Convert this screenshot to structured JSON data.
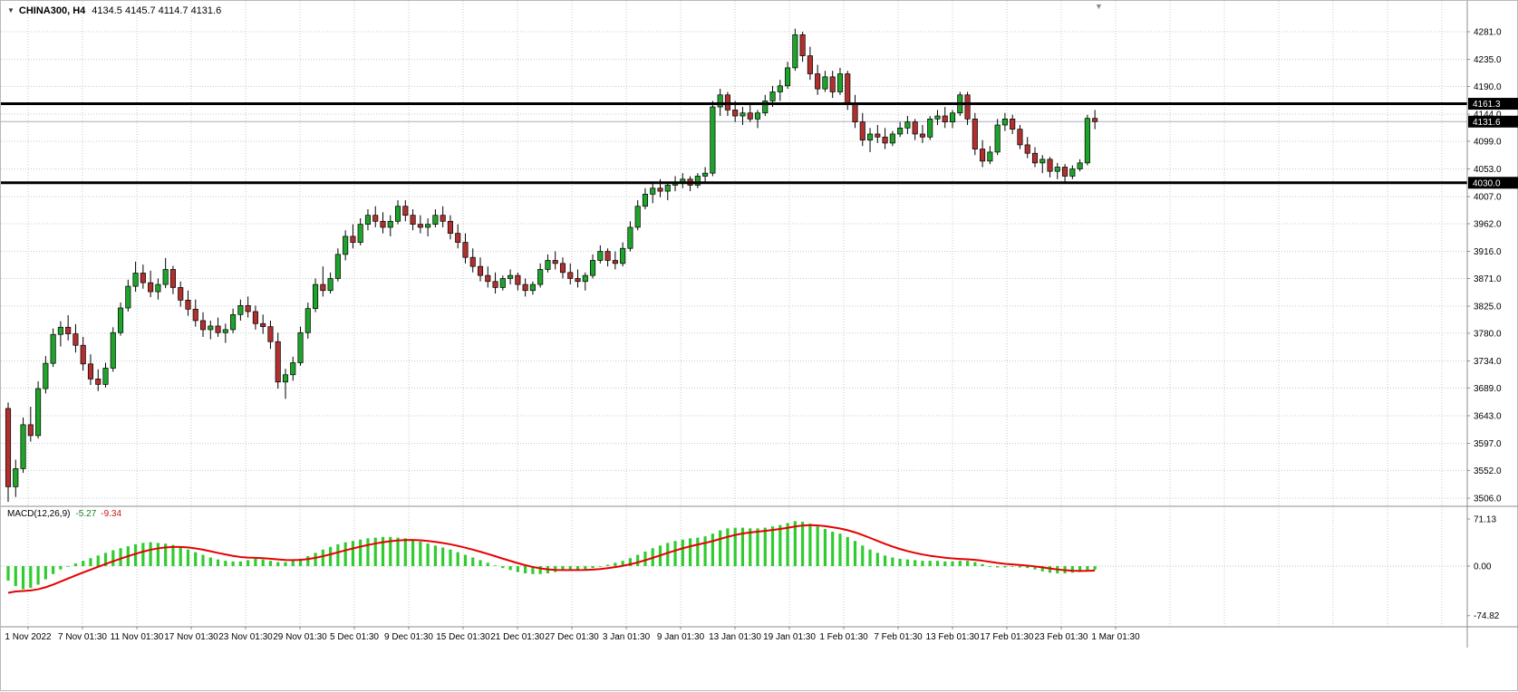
{
  "window": {
    "symbol": "CHINA300, H4",
    "ohlc": "4134.5 4145.7 4114.7 4131.6"
  },
  "macd": {
    "label": "MACD(12,26,9)",
    "main_value": "-5.27",
    "signal_value": "-9.34",
    "ticks": [
      "71.13",
      "0.00",
      "-74.82"
    ],
    "tick_values": [
      71.13,
      0,
      -74.82
    ]
  },
  "price_axis": {
    "ticks": [
      "4281.0",
      "4235.0",
      "4190.0",
      "4144.0",
      "4099.0",
      "4053.0",
      "4007.0",
      "3962.0",
      "3916.0",
      "3871.0",
      "3825.0",
      "3780.0",
      "3734.0",
      "3689.0",
      "3643.0",
      "3597.0",
      "3552.0",
      "3506.0"
    ],
    "values": [
      4281,
      4235,
      4190,
      4144,
      4099,
      4053,
      4007,
      3962,
      3916,
      3871,
      3825,
      3780,
      3734,
      3689,
      3643,
      3597,
      3552,
      3506
    ]
  },
  "time_axis": {
    "labels": [
      "1 Nov 2022",
      "7 Nov 01:30",
      "11 Nov 01:30",
      "17 Nov 01:30",
      "23 Nov 01:30",
      "29 Nov 01:30",
      "5 Dec 01:30",
      "9 Dec 01:30",
      "15 Dec 01:30",
      "21 Dec 01:30",
      "27 Dec 01:30",
      "3 Jan 01:30",
      "9 Jan 01:30",
      "13 Jan 01:30",
      "19 Jan 01:30",
      "1 Feb 01:30",
      "7 Feb 01:30",
      "13 Feb 01:30",
      "17 Feb 01:30",
      "23 Feb 01:30",
      "1 Mar 01:30"
    ]
  },
  "lines": {
    "levels": [
      {
        "price": 4161.3,
        "tag": "4161.3"
      },
      {
        "price": 4030.0,
        "tag": "4030.0"
      }
    ],
    "current": {
      "price": 4131.6,
      "tag": "4131.6"
    }
  },
  "colors": {
    "bull": "#1ea32b",
    "bear": "#b03030",
    "outline": "#000000",
    "wick": "#000000",
    "grid": "#c9c9c9",
    "hline": "#000000",
    "hist": "#2fcc2f",
    "signal": "#e60000",
    "tag_bg": "#000000",
    "tag_text": "#ffffff",
    "divider": "#8c8c8c",
    "current_line": "#aab0bc"
  },
  "chart_data": [
    {
      "type": "candlestick",
      "title": "CHINA300, H4",
      "timeframe": "H4",
      "ylim": [
        3506,
        4281
      ],
      "y_tick_labels": [
        "4281.0",
        "4235.0",
        "4190.0",
        "4144.0",
        "4099.0",
        "4053.0",
        "4007.0",
        "3962.0",
        "3916.0",
        "3871.0",
        "3825.0",
        "3780.0",
        "3734.0",
        "3689.0",
        "3643.0",
        "3597.0",
        "3552.0",
        "3506.0"
      ],
      "x_tick_labels": [
        "1 Nov 2022",
        "7 Nov 01:30",
        "11 Nov 01:30",
        "17 Nov 01:30",
        "23 Nov 01:30",
        "29 Nov 01:30",
        "5 Dec 01:30",
        "9 Dec 01:30",
        "15 Dec 01:30",
        "21 Dec 01:30",
        "27 Dec 01:30",
        "3 Jan 01:30",
        "9 Jan 01:30",
        "13 Jan 01:30",
        "19 Jan 01:30",
        "1 Feb 01:30",
        "7 Feb 01:30",
        "13 Feb 01:30",
        "17 Feb 01:30",
        "23 Feb 01:30",
        "1 Mar 01:30"
      ],
      "horizontal_levels": [
        4161.3,
        4030.0
      ],
      "current_price": 4131.6,
      "ohlc": [
        [
          3655,
          3665,
          3500,
          3525
        ],
        [
          3525,
          3570,
          3508,
          3555
        ],
        [
          3555,
          3640,
          3548,
          3628
        ],
        [
          3628,
          3658,
          3600,
          3610
        ],
        [
          3610,
          3700,
          3605,
          3688
        ],
        [
          3688,
          3742,
          3680,
          3730
        ],
        [
          3730,
          3788,
          3724,
          3778
        ],
        [
          3778,
          3800,
          3758,
          3790
        ],
        [
          3790,
          3810,
          3768,
          3779
        ],
        [
          3779,
          3795,
          3748,
          3760
        ],
        [
          3760,
          3774,
          3718,
          3729
        ],
        [
          3729,
          3745,
          3694,
          3704
        ],
        [
          3704,
          3720,
          3684,
          3695
        ],
        [
          3695,
          3731,
          3690,
          3722
        ],
        [
          3722,
          3790,
          3716,
          3781
        ],
        [
          3781,
          3831,
          3776,
          3822
        ],
        [
          3822,
          3869,
          3816,
          3858
        ],
        [
          3858,
          3899,
          3849,
          3880
        ],
        [
          3880,
          3894,
          3854,
          3864
        ],
        [
          3864,
          3884,
          3840,
          3849
        ],
        [
          3849,
          3871,
          3836,
          3861
        ],
        [
          3861,
          3905,
          3855,
          3886
        ],
        [
          3886,
          3892,
          3845,
          3856
        ],
        [
          3856,
          3866,
          3824,
          3835
        ],
        [
          3835,
          3851,
          3809,
          3820
        ],
        [
          3820,
          3836,
          3791,
          3801
        ],
        [
          3801,
          3815,
          3774,
          3786
        ],
        [
          3786,
          3801,
          3770,
          3792
        ],
        [
          3792,
          3806,
          3774,
          3781
        ],
        [
          3781,
          3796,
          3764,
          3786
        ],
        [
          3786,
          3821,
          3780,
          3811
        ],
        [
          3811,
          3836,
          3801,
          3826
        ],
        [
          3826,
          3841,
          3806,
          3816
        ],
        [
          3816,
          3826,
          3786,
          3796
        ],
        [
          3796,
          3811,
          3779,
          3791
        ],
        [
          3791,
          3801,
          3754,
          3766
        ],
        [
          3766,
          3781,
          3688,
          3699
        ],
        [
          3699,
          3721,
          3671,
          3711
        ],
        [
          3711,
          3741,
          3701,
          3731
        ],
        [
          3731,
          3791,
          3726,
          3781
        ],
        [
          3781,
          3831,
          3771,
          3821
        ],
        [
          3821,
          3871,
          3815,
          3861
        ],
        [
          3861,
          3891,
          3841,
          3851
        ],
        [
          3851,
          3881,
          3846,
          3871
        ],
        [
          3871,
          3921,
          3866,
          3911
        ],
        [
          3911,
          3951,
          3901,
          3941
        ],
        [
          3941,
          3961,
          3921,
          3931
        ],
        [
          3931,
          3971,
          3926,
          3961
        ],
        [
          3961,
          3986,
          3951,
          3976
        ],
        [
          3976,
          3991,
          3956,
          3966
        ],
        [
          3966,
          3981,
          3946,
          3956
        ],
        [
          3956,
          3976,
          3941,
          3966
        ],
        [
          3966,
          4001,
          3961,
          3991
        ],
        [
          3991,
          4001,
          3966,
          3976
        ],
        [
          3976,
          3986,
          3951,
          3961
        ],
        [
          3961,
          3976,
          3946,
          3956
        ],
        [
          3956,
          3971,
          3941,
          3961
        ],
        [
          3961,
          3986,
          3956,
          3976
        ],
        [
          3976,
          3991,
          3956,
          3966
        ],
        [
          3966,
          3976,
          3936,
          3946
        ],
        [
          3946,
          3961,
          3921,
          3931
        ],
        [
          3931,
          3946,
          3896,
          3906
        ],
        [
          3906,
          3921,
          3881,
          3891
        ],
        [
          3891,
          3906,
          3866,
          3876
        ],
        [
          3876,
          3891,
          3856,
          3866
        ],
        [
          3866,
          3881,
          3846,
          3856
        ],
        [
          3856,
          3876,
          3851,
          3871
        ],
        [
          3871,
          3886,
          3861,
          3876
        ],
        [
          3876,
          3881,
          3851,
          3861
        ],
        [
          3861,
          3871,
          3841,
          3851
        ],
        [
          3851,
          3866,
          3844,
          3861
        ],
        [
          3861,
          3896,
          3856,
          3886
        ],
        [
          3886,
          3911,
          3881,
          3901
        ],
        [
          3901,
          3916,
          3886,
          3896
        ],
        [
          3896,
          3906,
          3871,
          3881
        ],
        [
          3881,
          3896,
          3861,
          3871
        ],
        [
          3871,
          3886,
          3856,
          3866
        ],
        [
          3866,
          3881,
          3851,
          3876
        ],
        [
          3876,
          3911,
          3871,
          3901
        ],
        [
          3901,
          3926,
          3896,
          3916
        ],
        [
          3916,
          3921,
          3891,
          3901
        ],
        [
          3901,
          3916,
          3886,
          3896
        ],
        [
          3896,
          3931,
          3891,
          3921
        ],
        [
          3921,
          3966,
          3916,
          3956
        ],
        [
          3956,
          4001,
          3951,
          3991
        ],
        [
          3991,
          4021,
          3986,
          4011
        ],
        [
          4011,
          4031,
          3996,
          4021
        ],
        [
          4021,
          4036,
          4006,
          4016
        ],
        [
          4016,
          4031,
          4001,
          4026
        ],
        [
          4026,
          4041,
          4016,
          4031
        ],
        [
          4031,
          4046,
          4021,
          4036
        ],
        [
          4036,
          4041,
          4016,
          4026
        ],
        [
          4026,
          4046,
          4021,
          4041
        ],
        [
          4041,
          4056,
          4031,
          4046
        ],
        [
          4046,
          4166,
          4041,
          4156
        ],
        [
          4156,
          4186,
          4141,
          4176
        ],
        [
          4176,
          4181,
          4141,
          4151
        ],
        [
          4151,
          4166,
          4131,
          4141
        ],
        [
          4141,
          4156,
          4126,
          4146
        ],
        [
          4146,
          4161,
          4131,
          4136
        ],
        [
          4136,
          4151,
          4121,
          4146
        ],
        [
          4146,
          4176,
          4141,
          4166
        ],
        [
          4166,
          4191,
          4156,
          4181
        ],
        [
          4181,
          4201,
          4166,
          4191
        ],
        [
          4191,
          4231,
          4186,
          4221
        ],
        [
          4221,
          4286,
          4216,
          4276
        ],
        [
          4276,
          4281,
          4231,
          4241
        ],
        [
          4241,
          4256,
          4201,
          4211
        ],
        [
          4211,
          4226,
          4176,
          4186
        ],
        [
          4186,
          4216,
          4181,
          4206
        ],
        [
          4206,
          4216,
          4171,
          4181
        ],
        [
          4181,
          4221,
          4176,
          4211
        ],
        [
          4211,
          4216,
          4151,
          4161
        ],
        [
          4161,
          4176,
          4121,
          4131
        ],
        [
          4131,
          4146,
          4091,
          4101
        ],
        [
          4101,
          4121,
          4081,
          4111
        ],
        [
          4111,
          4126,
          4096,
          4106
        ],
        [
          4106,
          4121,
          4086,
          4096
        ],
        [
          4096,
          4116,
          4091,
          4111
        ],
        [
          4111,
          4131,
          4106,
          4121
        ],
        [
          4121,
          4141,
          4111,
          4131
        ],
        [
          4131,
          4136,
          4101,
          4111
        ],
        [
          4111,
          4126,
          4096,
          4106
        ],
        [
          4106,
          4141,
          4101,
          4136
        ],
        [
          4136,
          4151,
          4126,
          4141
        ],
        [
          4141,
          4156,
          4121,
          4131
        ],
        [
          4131,
          4151,
          4121,
          4146
        ],
        [
          4146,
          4181,
          4141,
          4176
        ],
        [
          4176,
          4181,
          4126,
          4136
        ],
        [
          4136,
          4146,
          4076,
          4086
        ],
        [
          4086,
          4101,
          4056,
          4066
        ],
        [
          4066,
          4091,
          4061,
          4081
        ],
        [
          4081,
          4136,
          4076,
          4126
        ],
        [
          4126,
          4146,
          4116,
          4136
        ],
        [
          4136,
          4143,
          4111,
          4119
        ],
        [
          4119,
          4126,
          4086,
          4093
        ],
        [
          4093,
          4106,
          4071,
          4079
        ],
        [
          4079,
          4089,
          4056,
          4063
        ],
        [
          4063,
          4076,
          4046,
          4069
        ],
        [
          4069,
          4073,
          4039,
          4049
        ],
        [
          4049,
          4063,
          4036,
          4056
        ],
        [
          4056,
          4061,
          4031,
          4041
        ],
        [
          4041,
          4059,
          4036,
          4053
        ],
        [
          4053,
          4069,
          4049,
          4063
        ],
        [
          4063,
          4143,
          4059,
          4137
        ],
        [
          4137,
          4151,
          4119,
          4131.6
        ]
      ]
    },
    {
      "type": "bar",
      "title": "MACD(12,26,9)",
      "ylim": [
        -74.82,
        71.13
      ],
      "y_tick_labels": [
        "71.13",
        "0.00",
        "-74.82"
      ],
      "last_main": -5.27,
      "last_signal": -9.34,
      "signal": {
        "type": "ema",
        "period": 9,
        "seed": -45
      },
      "values": [
        -22,
        -30,
        -35,
        -33,
        -28,
        -20,
        -12,
        -5,
        0,
        4,
        8,
        12,
        16,
        20,
        24,
        27,
        30,
        33,
        35,
        36,
        35,
        34,
        32,
        29,
        25,
        21,
        17,
        13,
        10,
        8,
        7,
        7,
        9,
        11,
        10,
        8,
        6,
        6,
        8,
        11,
        15,
        20,
        25,
        29,
        33,
        36,
        38,
        40,
        42,
        43,
        44,
        44,
        43,
        42,
        40,
        37,
        34,
        31,
        28,
        25,
        21,
        17,
        13,
        9,
        5,
        1,
        -3,
        -6,
        -9,
        -11,
        -12,
        -12,
        -11,
        -9,
        -7,
        -6,
        -6,
        -5,
        -3,
        -1,
        2,
        5,
        8,
        12,
        17,
        22,
        27,
        31,
        35,
        38,
        40,
        42,
        43,
        45,
        49,
        54,
        57,
        58,
        58,
        57,
        57,
        58,
        60,
        62,
        65,
        68,
        67,
        64,
        60,
        56,
        52,
        49,
        44,
        38,
        31,
        25,
        20,
        16,
        13,
        11,
        10,
        9,
        8,
        8,
        8,
        7,
        7,
        8,
        8,
        6,
        3,
        0,
        -2,
        -2,
        -1,
        -2,
        -3,
        -5,
        -8,
        -10,
        -11,
        -11,
        -10,
        -9,
        -6,
        -5.27
      ]
    }
  ]
}
